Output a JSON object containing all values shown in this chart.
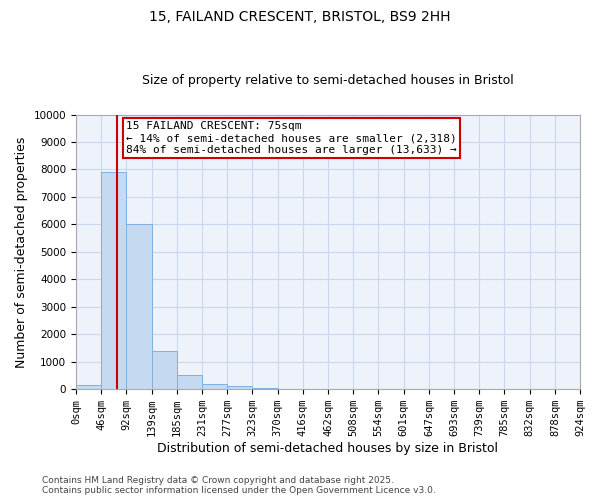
{
  "title_line1": "15, FAILAND CRESCENT, BRISTOL, BS9 2HH",
  "title_line2": "Size of property relative to semi-detached houses in Bristol",
  "xlabel": "Distribution of semi-detached houses by size in Bristol",
  "ylabel": "Number of semi-detached properties",
  "footnote_line1": "Contains HM Land Registry data © Crown copyright and database right 2025.",
  "footnote_line2": "Contains public sector information licensed under the Open Government Licence v3.0.",
  "annotation_line1": "15 FAILAND CRESCENT: 75sqm",
  "annotation_line2": "← 14% of semi-detached houses are smaller (2,318)",
  "annotation_line3": "84% of semi-detached houses are larger (13,633) →",
  "property_size": 75,
  "bin_edges": [
    0,
    46,
    92,
    139,
    185,
    231,
    277,
    323,
    370,
    416,
    462,
    508,
    554,
    601,
    647,
    693,
    739,
    785,
    832,
    878,
    924
  ],
  "bin_labels": [
    "0sqm",
    "46sqm",
    "92sqm",
    "139sqm",
    "185sqm",
    "231sqm",
    "277sqm",
    "323sqm",
    "370sqm",
    "416sqm",
    "462sqm",
    "508sqm",
    "554sqm",
    "601sqm",
    "647sqm",
    "693sqm",
    "739sqm",
    "785sqm",
    "832sqm",
    "878sqm",
    "924sqm"
  ],
  "bar_heights": [
    150,
    7900,
    6000,
    1400,
    500,
    200,
    100,
    50,
    10,
    5,
    2,
    1,
    0,
    0,
    0,
    0,
    0,
    0,
    0,
    0
  ],
  "bar_facecolor": "#c5d9f0",
  "bar_edgecolor": "#7fb0e0",
  "bar_linewidth": 0.7,
  "vline_color": "#cc0000",
  "vline_linewidth": 1.5,
  "annotation_box_edgecolor": "#cc0000",
  "annotation_box_facecolor": "white",
  "annotation_fontsize": 8,
  "ylim": [
    0,
    10000
  ],
  "yticks": [
    0,
    1000,
    2000,
    3000,
    4000,
    5000,
    6000,
    7000,
    8000,
    9000,
    10000
  ],
  "grid_color": "#c8d8f0",
  "fig_background_color": "#ffffff",
  "plot_background_color": "#eef2fb",
  "title_fontsize": 10,
  "subtitle_fontsize": 9,
  "axis_label_fontsize": 9,
  "tick_fontsize": 7.5,
  "footnote_fontsize": 6.5
}
